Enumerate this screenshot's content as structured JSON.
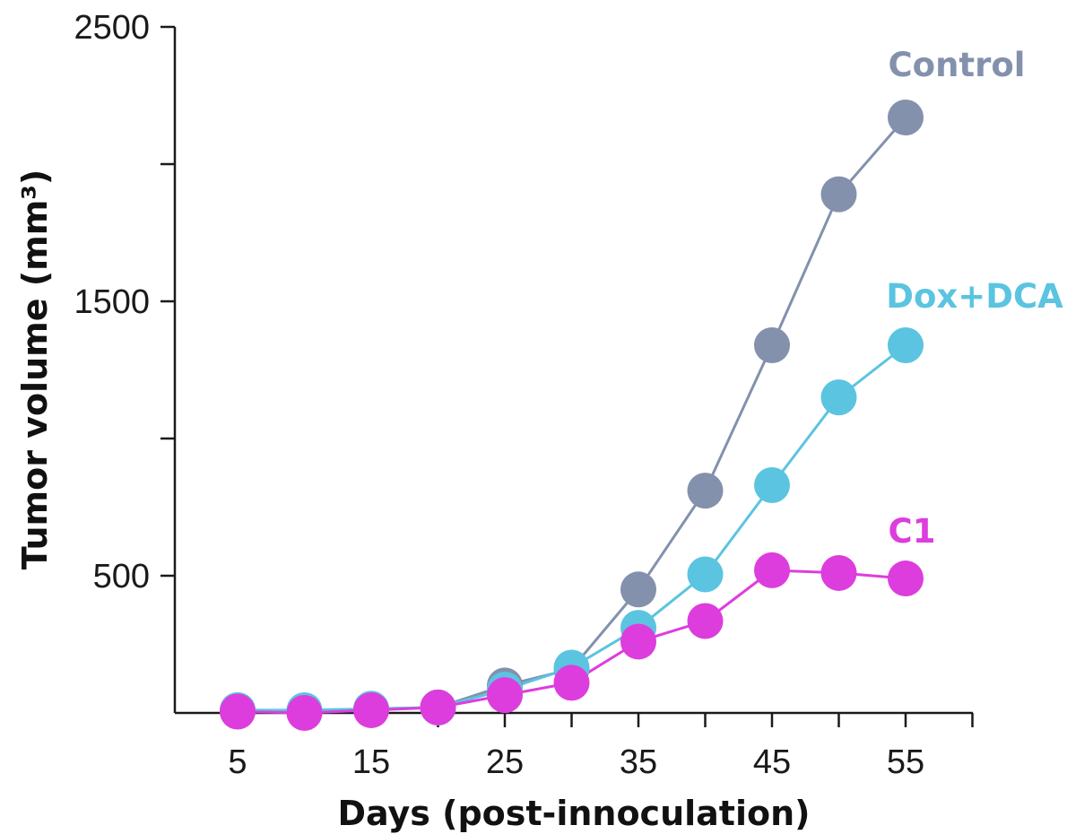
{
  "chart_data": {
    "type": "line",
    "title": "",
    "xlabel": "Days (post-innoculation)",
    "ylabel": "Tumor volume (mm³)",
    "x": [
      5,
      10,
      15,
      20,
      25,
      30,
      35,
      40,
      45,
      50,
      55
    ],
    "x_ticks": [
      5,
      15,
      25,
      35,
      45,
      55
    ],
    "y_ticks": [
      2500,
      1500,
      500
    ],
    "xlim": [
      0,
      60
    ],
    "ylim": [
      0,
      2500
    ],
    "grid": false,
    "legend": "direct labels at right end of each series",
    "series": [
      {
        "name": "Control",
        "color": "#8391ad",
        "values": [
          10,
          5,
          15,
          20,
          100,
          160,
          450,
          810,
          1340,
          1890,
          2170
        ]
      },
      {
        "name": "Dox+DCA",
        "color": "#5bc4e0",
        "values": [
          10,
          10,
          15,
          20,
          85,
          165,
          310,
          505,
          830,
          1150,
          1340
        ]
      },
      {
        "name": "C1",
        "color": "#dd3ddd",
        "values": [
          5,
          0,
          10,
          20,
          65,
          110,
          260,
          335,
          520,
          510,
          490
        ]
      }
    ]
  }
}
